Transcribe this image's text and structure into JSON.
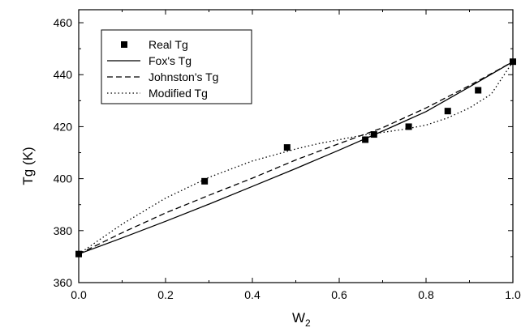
{
  "chart_data": {
    "type": "line",
    "xlabel": "W",
    "xlabel_sub": "2",
    "ylabel": "Tg (K)",
    "xlim": [
      0.0,
      1.0
    ],
    "ylim": [
      360,
      465
    ],
    "x_ticks": [
      0.0,
      0.2,
      0.4,
      0.6,
      0.8,
      1.0
    ],
    "x_tick_labels": [
      "0.0",
      "0.2",
      "0.4",
      "0.6",
      "0.8",
      "1.0"
    ],
    "y_ticks": [
      360,
      380,
      400,
      420,
      440,
      460
    ],
    "y_tick_labels": [
      "360",
      "380",
      "400",
      "420",
      "440",
      "460"
    ],
    "grid": false,
    "legend_position": "top-left",
    "series": [
      {
        "name": "Real Tg",
        "kind": "scatter",
        "marker": "square",
        "x": [
          0.0,
          0.29,
          0.48,
          0.66,
          0.68,
          0.76,
          0.85,
          0.92,
          1.0
        ],
        "y": [
          371,
          399,
          412,
          415,
          417,
          420,
          426,
          434,
          445
        ]
      },
      {
        "name": "Fox's Tg",
        "kind": "line",
        "dash": "solid",
        "x": [
          0.0,
          0.1,
          0.2,
          0.3,
          0.4,
          0.5,
          0.6,
          0.7,
          0.8,
          0.9,
          1.0
        ],
        "y": [
          371,
          377.2,
          383.6,
          390.2,
          397.0,
          403.9,
          411.0,
          418.3,
          425.8,
          435.3,
          445
        ]
      },
      {
        "name": "Johnston's Tg",
        "kind": "line",
        "dash": "dashed",
        "x": [
          0.0,
          0.1,
          0.2,
          0.3,
          0.4,
          0.5,
          0.6,
          0.7,
          0.8,
          0.9,
          1.0
        ],
        "y": [
          371,
          379.2,
          386.8,
          393.6,
          400.2,
          407.2,
          413.5,
          419.6,
          427.2,
          435.8,
          445
        ]
      },
      {
        "name": "Modified Tg",
        "kind": "line",
        "dash": "dotted",
        "x": [
          0.0,
          0.1,
          0.2,
          0.3,
          0.4,
          0.5,
          0.55,
          0.6,
          0.65,
          0.7,
          0.75,
          0.8,
          0.85,
          0.9,
          0.95,
          1.0
        ],
        "y": [
          371,
          382.5,
          392.5,
          400.5,
          406.8,
          411.4,
          413.4,
          415.0,
          416.6,
          417.8,
          419.0,
          420.6,
          423.4,
          427.2,
          432.5,
          445
        ]
      }
    ]
  }
}
